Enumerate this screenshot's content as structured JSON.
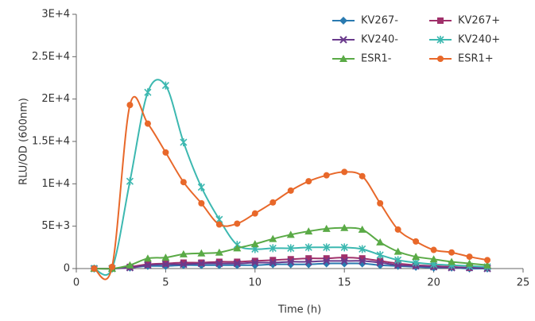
{
  "chart_data": {
    "type": "line",
    "x_label": "Time (h)",
    "y_label": "RLU/OD (600nm)",
    "x": [
      1,
      2,
      3,
      4,
      5,
      6,
      7,
      8,
      9,
      10,
      11,
      12,
      13,
      14,
      15,
      16,
      17,
      18,
      19,
      20,
      21,
      22,
      23
    ],
    "series": [
      {
        "name": "KV267-",
        "color": "#2a7ab0",
        "marker": "diamond",
        "values": [
          0,
          0,
          100,
          300,
          300,
          400,
          400,
          400,
          400,
          400,
          500,
          500,
          500,
          600,
          600,
          600,
          400,
          300,
          200,
          100,
          100,
          0,
          0
        ]
      },
      {
        "name": "KV267+",
        "color": "#a0306a",
        "marker": "square",
        "values": [
          0,
          0,
          200,
          500,
          600,
          700,
          700,
          800,
          800,
          900,
          1000,
          1100,
          1200,
          1200,
          1300,
          1200,
          900,
          600,
          400,
          300,
          200,
          100,
          100
        ]
      },
      {
        "name": "KV240-",
        "color": "#6a3a8c",
        "marker": "x",
        "values": [
          0,
          0,
          100,
          400,
          500,
          500,
          600,
          600,
          600,
          700,
          700,
          800,
          800,
          900,
          900,
          900,
          700,
          400,
          300,
          200,
          100,
          100,
          0
        ]
      },
      {
        "name": "KV240+",
        "color": "#3cb8b0",
        "marker": "asterisk",
        "values": [
          0,
          0,
          10300,
          20800,
          21600,
          14900,
          9600,
          5800,
          2800,
          2300,
          2400,
          2400,
          2500,
          2500,
          2500,
          2300,
          1600,
          1000,
          700,
          500,
          400,
          300,
          200
        ]
      },
      {
        "name": "ESR1-",
        "color": "#5aaa46",
        "marker": "triangle",
        "values": [
          0,
          0,
          400,
          1200,
          1300,
          1700,
          1800,
          1900,
          2400,
          2900,
          3500,
          4000,
          4400,
          4700,
          4800,
          4600,
          3100,
          2000,
          1400,
          1100,
          800,
          600,
          400
        ]
      },
      {
        "name": "ESR1+",
        "color": "#e8682a",
        "marker": "circle",
        "values": [
          0,
          200,
          19300,
          17100,
          13700,
          10200,
          7700,
          5200,
          5300,
          6500,
          7800,
          9200,
          10300,
          11000,
          11400,
          10900,
          7700,
          4600,
          3200,
          2200,
          1900,
          1400,
          1000
        ]
      }
    ],
    "xlim": [
      0,
      25
    ],
    "xticks": [
      0,
      5,
      10,
      15,
      20,
      25
    ],
    "ylim": [
      0,
      30000
    ],
    "yticks": [
      0,
      {
        "value": 5000,
        "label": "5E+3"
      },
      {
        "value": 10000,
        "label": "1E+4"
      },
      {
        "value": 15000,
        "label": "1.5E+4"
      },
      {
        "value": 20000,
        "label": "2E+4"
      },
      {
        "value": 25000,
        "label": "2.5E+4"
      },
      {
        "value": 30000,
        "label": "3E+4"
      }
    ],
    "grid": false,
    "legend": "top-right",
    "smooth": true
  }
}
